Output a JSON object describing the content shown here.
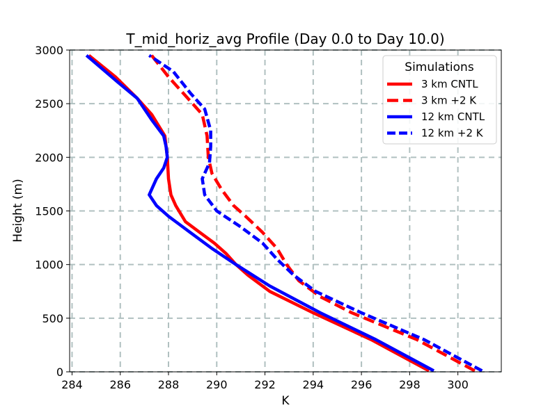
{
  "chart_data": {
    "type": "line",
    "title": "T_mid_horiz_avg Profile (Day 0.0 to Day 10.0)",
    "xlabel": "K",
    "ylabel": "Height (m)",
    "xlim": [
      283.9,
      301.8
    ],
    "ylim": [
      0,
      3000
    ],
    "xticks": [
      284,
      286,
      288,
      290,
      292,
      294,
      296,
      298,
      300
    ],
    "yticks": [
      0,
      500,
      1000,
      1500,
      2000,
      2500,
      3000
    ],
    "grid": true,
    "legend": {
      "title": "Simulations",
      "placement": "top-right"
    },
    "series": [
      {
        "name": "3 km CNTL",
        "color": "#ff0000",
        "dash": "solid",
        "points": [
          [
            298.8,
            10
          ],
          [
            296.4,
            300
          ],
          [
            294.0,
            550
          ],
          [
            292.2,
            750
          ],
          [
            291.3,
            900
          ],
          [
            290.8,
            1000
          ],
          [
            290.4,
            1100
          ],
          [
            289.9,
            1200
          ],
          [
            289.3,
            1300
          ],
          [
            288.7,
            1400
          ],
          [
            288.3,
            1550
          ],
          [
            288.1,
            1650
          ],
          [
            288.0,
            1800
          ],
          [
            287.95,
            2000
          ],
          [
            287.85,
            2200
          ],
          [
            287.3,
            2400
          ],
          [
            286.7,
            2550
          ],
          [
            285.8,
            2750
          ],
          [
            284.7,
            2950
          ]
        ]
      },
      {
        "name": "3 km +2 K",
        "color": "#ff0000",
        "dash": "dashed",
        "points": [
          [
            300.7,
            10
          ],
          [
            298.3,
            300
          ],
          [
            295.6,
            550
          ],
          [
            294.3,
            700
          ],
          [
            293.4,
            850
          ],
          [
            292.9,
            1000
          ],
          [
            292.5,
            1150
          ],
          [
            291.9,
            1300
          ],
          [
            291.2,
            1450
          ],
          [
            290.7,
            1550
          ],
          [
            290.2,
            1700
          ],
          [
            289.8,
            1850
          ],
          [
            289.65,
            2000
          ],
          [
            289.6,
            2200
          ],
          [
            289.4,
            2400
          ],
          [
            288.8,
            2550
          ],
          [
            288.0,
            2750
          ],
          [
            287.3,
            2950
          ]
        ]
      },
      {
        "name": "12 km CNTL",
        "color": "#0000ff",
        "dash": "solid",
        "points": [
          [
            299.0,
            10
          ],
          [
            296.6,
            300
          ],
          [
            294.3,
            550
          ],
          [
            292.2,
            800
          ],
          [
            290.8,
            1000
          ],
          [
            289.8,
            1150
          ],
          [
            288.9,
            1300
          ],
          [
            288.0,
            1450
          ],
          [
            287.5,
            1550
          ],
          [
            287.2,
            1650
          ],
          [
            287.5,
            1800
          ],
          [
            287.8,
            1900
          ],
          [
            287.95,
            2000
          ],
          [
            287.9,
            2100
          ],
          [
            287.8,
            2200
          ],
          [
            287.3,
            2350
          ],
          [
            286.7,
            2550
          ],
          [
            285.9,
            2700
          ],
          [
            284.6,
            2950
          ]
        ]
      },
      {
        "name": "12 km +2 K",
        "color": "#0000ff",
        "dash": "dotted",
        "points": [
          [
            301.0,
            10
          ],
          [
            298.6,
            300
          ],
          [
            296.0,
            550
          ],
          [
            294.1,
            750
          ],
          [
            293.2,
            900
          ],
          [
            292.5,
            1050
          ],
          [
            291.9,
            1200
          ],
          [
            291.0,
            1350
          ],
          [
            290.0,
            1500
          ],
          [
            289.5,
            1650
          ],
          [
            289.4,
            1800
          ],
          [
            289.7,
            1950
          ],
          [
            289.75,
            2100
          ],
          [
            289.75,
            2250
          ],
          [
            289.5,
            2450
          ],
          [
            288.9,
            2600
          ],
          [
            288.2,
            2800
          ],
          [
            287.2,
            2950
          ]
        ]
      }
    ]
  }
}
